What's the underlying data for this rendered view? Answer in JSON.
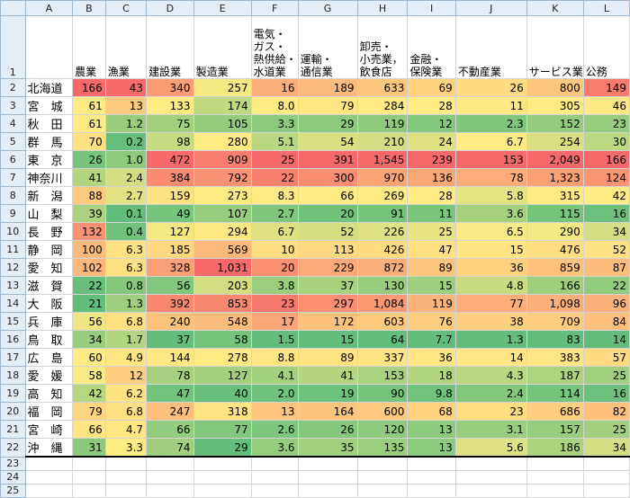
{
  "columns": [
    "A",
    "B",
    "C",
    "D",
    "E",
    "F",
    "G",
    "H",
    "I",
    "J",
    "K",
    "L"
  ],
  "header_row_number": "1",
  "headers": [
    [
      "農業"
    ],
    [
      "漁業"
    ],
    [
      "建設業"
    ],
    [
      "製造業"
    ],
    [
      "電気・",
      "ガス・",
      "熱供給・",
      "水道業"
    ],
    [
      "運輸・",
      "通信業"
    ],
    [
      "卸売・",
      "小売業，",
      "飲食店"
    ],
    [
      "金融・",
      "保険業"
    ],
    [
      "不動産業"
    ],
    [
      "サービス業"
    ],
    [
      "公務"
    ]
  ],
  "rows": [
    {
      "num": "2",
      "pref": "北海道",
      "vals": [
        "166",
        "43",
        "340",
        "257",
        "16",
        "189",
        "633",
        "69",
        "26",
        "800",
        "149"
      ]
    },
    {
      "num": "3",
      "pref": "宮　城",
      "vals": [
        "61",
        "13",
        "133",
        "174",
        "8.0",
        "79",
        "284",
        "28",
        "11",
        "305",
        "46"
      ]
    },
    {
      "num": "4",
      "pref": "秋　田",
      "vals": [
        "61",
        "1.2",
        "75",
        "105",
        "3.3",
        "29",
        "119",
        "12",
        "2.3",
        "152",
        "23"
      ]
    },
    {
      "num": "5",
      "pref": "群　馬",
      "vals": [
        "70",
        "0.2",
        "98",
        "280",
        "5.1",
        "54",
        "210",
        "24",
        "6.7",
        "254",
        "30"
      ]
    },
    {
      "num": "6",
      "pref": "東　京",
      "vals": [
        "26",
        "1.0",
        "472",
        "909",
        "25",
        "391",
        "1,545",
        "239",
        "153",
        "2,049",
        "166"
      ]
    },
    {
      "num": "7",
      "pref": "神奈川",
      "vals": [
        "41",
        "2.4",
        "384",
        "792",
        "22",
        "300",
        "970",
        "136",
        "78",
        "1,323",
        "124"
      ]
    },
    {
      "num": "8",
      "pref": "新　潟",
      "vals": [
        "88",
        "2.7",
        "159",
        "273",
        "8.3",
        "66",
        "269",
        "28",
        "5.8",
        "315",
        "42"
      ]
    },
    {
      "num": "9",
      "pref": "山　梨",
      "vals": [
        "39",
        "0.1",
        "49",
        "107",
        "2.7",
        "20",
        "91",
        "11",
        "3.6",
        "115",
        "16"
      ]
    },
    {
      "num": "10",
      "pref": "長　野",
      "vals": [
        "132",
        "0.4",
        "127",
        "294",
        "6.7",
        "52",
        "226",
        "25",
        "6.5",
        "290",
        "34"
      ]
    },
    {
      "num": "11",
      "pref": "静　岡",
      "vals": [
        "100",
        "6.3",
        "185",
        "569",
        "10",
        "113",
        "426",
        "47",
        "15",
        "476",
        "52"
      ]
    },
    {
      "num": "12",
      "pref": "愛　知",
      "vals": [
        "102",
        "6.3",
        "328",
        "1,031",
        "20",
        "229",
        "872",
        "89",
        "36",
        "859",
        "87"
      ]
    },
    {
      "num": "13",
      "pref": "滋　賀",
      "vals": [
        "22",
        "0.8",
        "56",
        "203",
        "3.8",
        "37",
        "130",
        "15",
        "4.8",
        "166",
        "22"
      ]
    },
    {
      "num": "14",
      "pref": "大　阪",
      "vals": [
        "21",
        "1.3",
        "392",
        "853",
        "23",
        "297",
        "1,084",
        "119",
        "77",
        "1,098",
        "96"
      ]
    },
    {
      "num": "15",
      "pref": "兵　庫",
      "vals": [
        "56",
        "6.8",
        "240",
        "548",
        "17",
        "172",
        "603",
        "76",
        "38",
        "709",
        "84"
      ]
    },
    {
      "num": "16",
      "pref": "鳥　取",
      "vals": [
        "34",
        "1.7",
        "37",
        "58",
        "1.5",
        "15",
        "64",
        "7.7",
        "1.3",
        "83",
        "14"
      ]
    },
    {
      "num": "17",
      "pref": "広　島",
      "vals": [
        "60",
        "4.9",
        "144",
        "278",
        "8.8",
        "89",
        "337",
        "36",
        "14",
        "383",
        "57"
      ]
    },
    {
      "num": "18",
      "pref": "愛　媛",
      "vals": [
        "58",
        "12",
        "78",
        "127",
        "4.1",
        "41",
        "153",
        "18",
        "4.3",
        "187",
        "25"
      ]
    },
    {
      "num": "19",
      "pref": "高　知",
      "vals": [
        "42",
        "6.2",
        "47",
        "40",
        "2.0",
        "19",
        "90",
        "9.8",
        "2.4",
        "114",
        "16"
      ]
    },
    {
      "num": "20",
      "pref": "福　岡",
      "vals": [
        "79",
        "6.8",
        "247",
        "318",
        "13",
        "164",
        "600",
        "68",
        "23",
        "686",
        "82"
      ]
    },
    {
      "num": "21",
      "pref": "宮　崎",
      "vals": [
        "66",
        "4.7",
        "66",
        "77",
        "2.6",
        "26",
        "120",
        "13",
        "3.1",
        "157",
        "25"
      ]
    },
    {
      "num": "22",
      "pref": "沖　縄",
      "vals": [
        "31",
        "3.3",
        "74",
        "29",
        "3.6",
        "35",
        "135",
        "13",
        "5.6",
        "186",
        "34"
      ]
    }
  ],
  "empty_rows": [
    "23",
    "24",
    "25"
  ]
}
